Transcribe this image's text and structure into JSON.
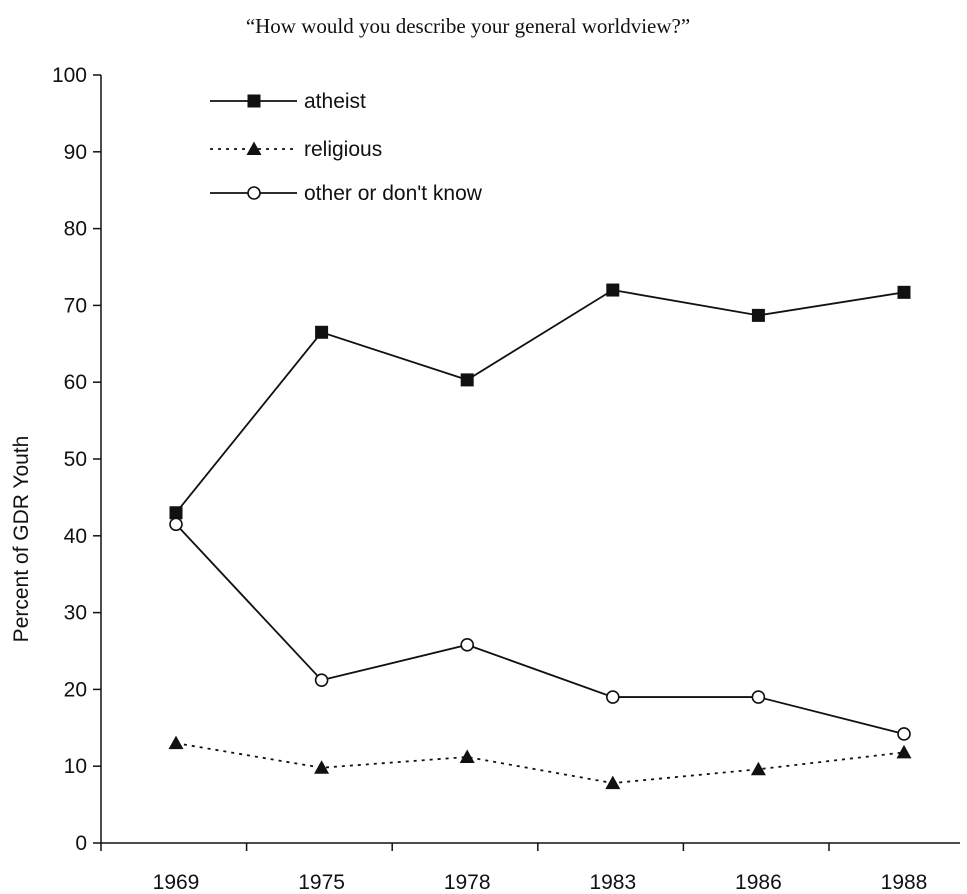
{
  "chart_data": {
    "type": "line",
    "title": "“How would you describe your general worldview?”",
    "ylabel": "Percent of GDR Youth",
    "xlabel": "",
    "categories": [
      "1969",
      "1975",
      "1978",
      "1983",
      "1986",
      "1988"
    ],
    "ylim": [
      0,
      100
    ],
    "yticks": [
      "0",
      "10",
      "20",
      "30",
      "40",
      "50",
      "60",
      "70",
      "80",
      "90",
      "100"
    ],
    "legend_position": "top-left",
    "grid": false,
    "series": [
      {
        "name": "atheist",
        "marker": "filled-square",
        "line": "solid",
        "values": [
          43,
          66.5,
          60.3,
          72,
          68.7,
          71.7
        ]
      },
      {
        "name": "religious",
        "marker": "filled-triangle",
        "line": "dotted",
        "values": [
          13,
          9.8,
          11.2,
          7.8,
          9.6,
          11.8
        ]
      },
      {
        "name": "other or don't know",
        "marker": "open-circle",
        "line": "solid",
        "values": [
          41.5,
          21.2,
          25.8,
          19,
          19,
          14.2
        ]
      }
    ]
  }
}
